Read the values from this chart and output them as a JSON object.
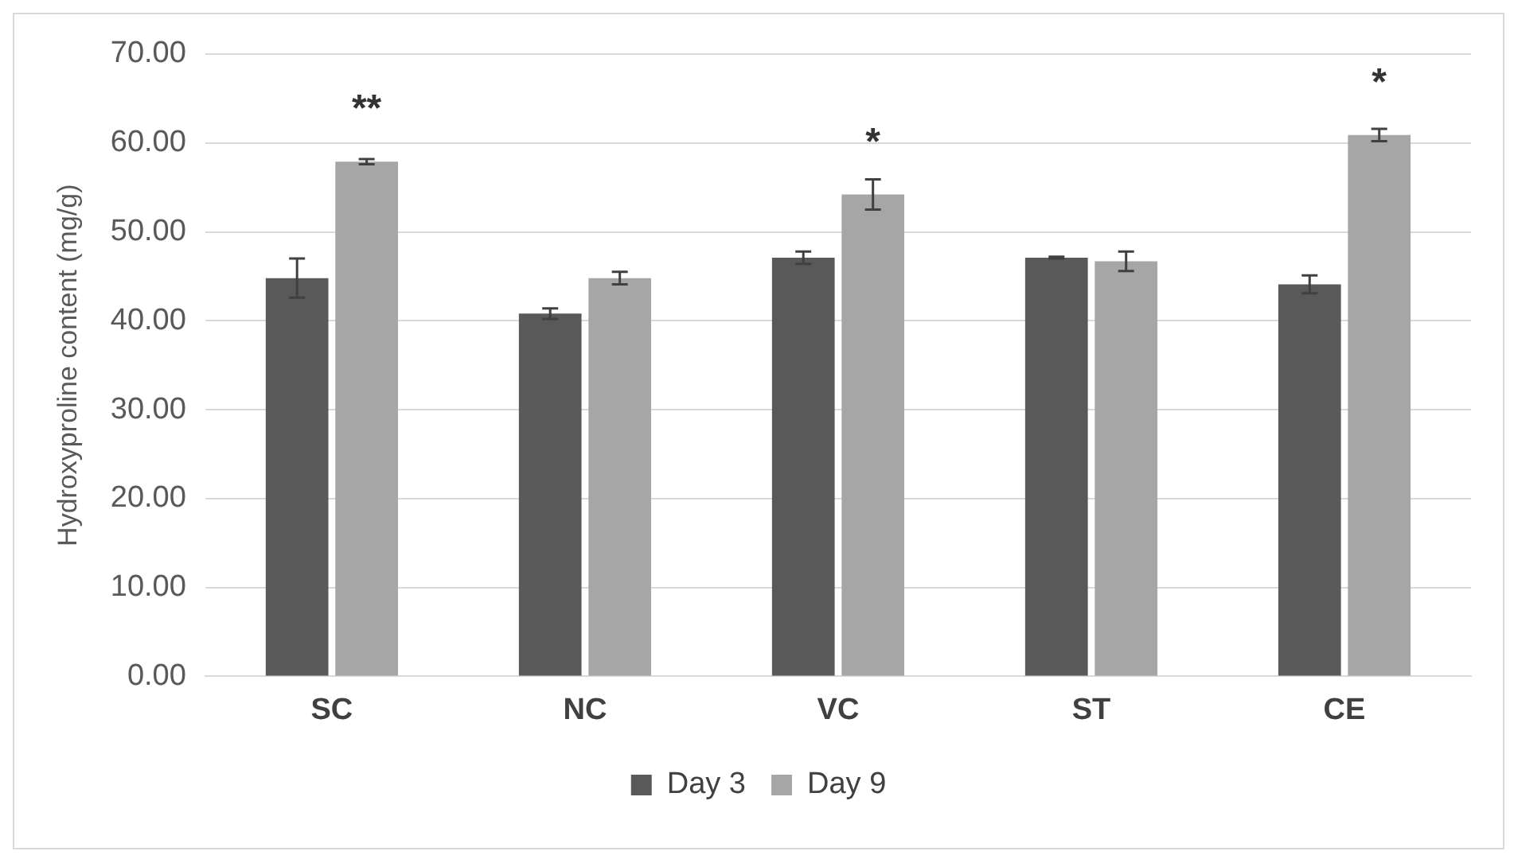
{
  "chart_data": {
    "type": "bar",
    "ylabel": "Hydroxyproline content (mg/g)",
    "categories": [
      "SC",
      "NC",
      "VC",
      "ST",
      "CE"
    ],
    "series": [
      {
        "name": "Day 3",
        "color": "#595959",
        "values": [
          44.8,
          40.8,
          47.1,
          47.1,
          44.1
        ],
        "errors": [
          2.2,
          0.6,
          0.7,
          0.1,
          1.0
        ]
      },
      {
        "name": "Day 9",
        "color": "#a6a6a6",
        "values": [
          57.9,
          44.8,
          54.2,
          46.7,
          60.9
        ],
        "errors": [
          0.3,
          0.7,
          1.7,
          1.1,
          0.7
        ]
      }
    ],
    "ylim": [
      0,
      70
    ],
    "yticks": [
      {
        "value": 0,
        "label": "0.00"
      },
      {
        "value": 10,
        "label": "10.00"
      },
      {
        "value": 20,
        "label": "20.00"
      },
      {
        "value": 30,
        "label": "30.00"
      },
      {
        "value": 40,
        "label": "40.00"
      },
      {
        "value": 50,
        "label": "50.00"
      },
      {
        "value": 60,
        "label": "60.00"
      },
      {
        "value": 70,
        "label": "70.00"
      }
    ],
    "annotations": [
      {
        "text": "**",
        "x": "SC",
        "y": 57.9
      },
      {
        "text": "*",
        "x": "VC",
        "y": 54.2
      },
      {
        "text": "*",
        "x": "CE",
        "y": 60.9
      }
    ],
    "grid": "y",
    "legend": "bottom"
  }
}
